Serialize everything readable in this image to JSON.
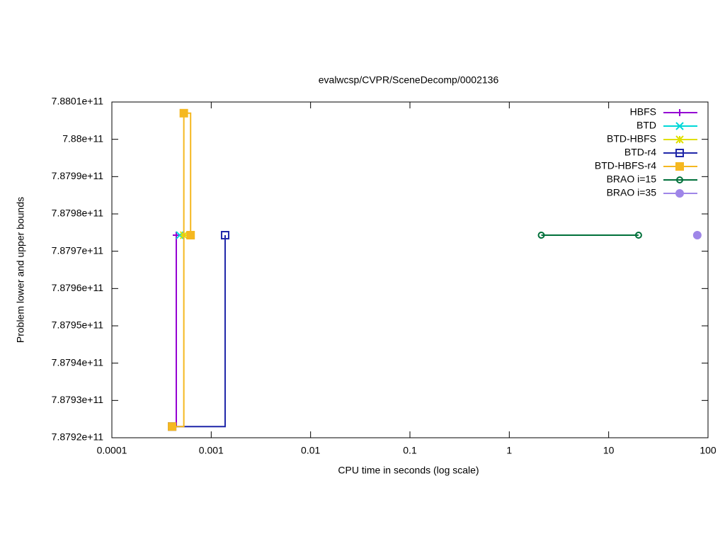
{
  "chart_data": {
    "type": "line",
    "title": "evalwcsp/CVPR/SceneDecomp/0002136",
    "xlabel": "CPU time in seconds (log scale)",
    "ylabel": "Problem lower and upper bounds",
    "xscale": "log",
    "xlim": [
      0.0001,
      100
    ],
    "xticks": [
      0.0001,
      0.001,
      0.01,
      0.1,
      1,
      10,
      100
    ],
    "ylim": [
      787920000000,
      788010000000
    ],
    "yticks": [
      {
        "value": 787920000000,
        "label": "7.8792e+11"
      },
      {
        "value": 787930000000,
        "label": "7.8793e+11"
      },
      {
        "value": 787940000000,
        "label": "7.8794e+11"
      },
      {
        "value": 787950000000,
        "label": "7.8795e+11"
      },
      {
        "value": 787960000000,
        "label": "7.8796e+11"
      },
      {
        "value": 787970000000,
        "label": "7.8797e+11"
      },
      {
        "value": 787980000000,
        "label": "7.8798e+11"
      },
      {
        "value": 787990000000,
        "label": "7.8799e+11"
      },
      {
        "value": 788000000000,
        "label": "7.88e+11"
      },
      {
        "value": 788010000000,
        "label": "7.8801e+11"
      }
    ],
    "grid": false,
    "legend": "top-right",
    "series": [
      {
        "name": "HBFS",
        "color": "#9400d3",
        "marker": "plus",
        "x": [
          0.000404,
          0.000445
        ],
        "values": [
          787923000000,
          787974300000
        ]
      },
      {
        "name": "BTD",
        "color": "#00d8d8",
        "marker": "cross",
        "x": [
          0.000483
        ],
        "values": [
          787974300000
        ]
      },
      {
        "name": "BTD-HBFS",
        "color": "#e0e000",
        "marker": "star",
        "x": [
          0.00053
        ],
        "values": [
          787974300000
        ]
      },
      {
        "name": "BTD-r4",
        "color": "#1f26a8",
        "marker": "square-open",
        "x": [
          0.000404,
          0.00138
        ],
        "values": [
          787923000000,
          787974300000
        ]
      },
      {
        "name": "BTD-HBFS-r4",
        "color": "#f5b820",
        "marker": "square-filled",
        "x": [
          0.000404,
          0.00053,
          0.00062
        ],
        "values": [
          787923000000,
          788007000000,
          787974300000
        ]
      },
      {
        "name": "BRAO i=15",
        "color": "#00703a",
        "marker": "circle-open",
        "x": [
          2.1,
          20
        ],
        "values": [
          787974300000,
          787974300000
        ]
      },
      {
        "name": "BRAO i=35",
        "color": "#9f86e8",
        "marker": "circle-filled",
        "x": [
          78
        ],
        "values": [
          787974300000
        ]
      }
    ]
  }
}
